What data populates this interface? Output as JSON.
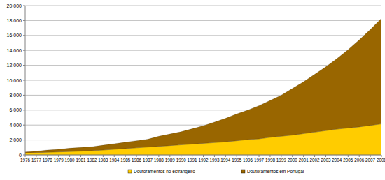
{
  "chart_data": {
    "type": "area",
    "stacked": true,
    "legend": "bottom",
    "grid": true,
    "categories": [
      "1976",
      "1977",
      "1978",
      "1979",
      "1980",
      "1981",
      "1982",
      "1983",
      "1984",
      "1985",
      "1986",
      "1987",
      "1988",
      "1989",
      "1990",
      "1991",
      "1992",
      "1993",
      "1994",
      "1995",
      "1996",
      "1997",
      "1998",
      "1999",
      "2000",
      "2001",
      "2002",
      "2003",
      "2004",
      "2005",
      "2006",
      "2007",
      "2008"
    ],
    "series": [
      {
        "name": "Doutoramentos no estrangeiro",
        "color": "#ffcc00",
        "values": [
          250,
          300,
          350,
          400,
          450,
          500,
          550,
          650,
          750,
          850,
          950,
          1050,
          1150,
          1250,
          1350,
          1450,
          1550,
          1650,
          1750,
          1900,
          2050,
          2150,
          2350,
          2500,
          2650,
          2850,
          3050,
          3250,
          3450,
          3600,
          3750,
          3950,
          4150
        ]
      },
      {
        "name": "Doutoramentos em Portugal",
        "color": "#996600",
        "values": [
          150,
          200,
          300,
          350,
          450,
          500,
          550,
          650,
          750,
          850,
          950,
          1050,
          1350,
          1550,
          1750,
          2050,
          2350,
          2750,
          3150,
          3600,
          3950,
          4450,
          4950,
          5500,
          6250,
          6950,
          7750,
          8550,
          9450,
          10500,
          11650,
          12850,
          14150
        ]
      }
    ],
    "ylim": [
      0,
      20000
    ],
    "yticks": [
      0,
      {
        "value": 2000,
        "label": "2 000"
      },
      {
        "value": 4000,
        "label": "4 000"
      },
      {
        "value": 6000,
        "label": "6 000"
      },
      {
        "value": 8000,
        "label": "8 000"
      },
      {
        "value": 10000,
        "label": "10 000"
      },
      {
        "value": 12000,
        "label": "12 000"
      },
      {
        "value": 14000,
        "label": "14 000"
      },
      {
        "value": 16000,
        "label": "16 000"
      },
      {
        "value": 18000,
        "label": "18 000"
      },
      {
        "value": 20000,
        "label": "20 000"
      }
    ]
  }
}
